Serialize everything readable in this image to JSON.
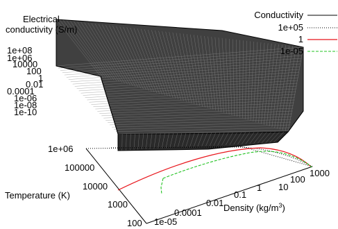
{
  "chart_data": {
    "type": "surface3d",
    "zlabel_line1": "Electrical",
    "zlabel_line2": "conductivity (S/m)",
    "ylabel": "Temperature (K)",
    "xlabel_main": "Density (kg/m",
    "xlabel_sup": "3",
    "xlabel_end": ")",
    "z_ticks": [
      "1e+08",
      "1e+06",
      "10000",
      "100",
      "1",
      "0.01",
      "0.0001",
      "1e-06",
      "1e-08",
      "1e-10"
    ],
    "y_ticks": [
      "1e+06",
      "100000",
      "10000",
      "1000",
      "100"
    ],
    "x_ticks": [
      "1e-05",
      "0.0001",
      "0.01",
      "0.1",
      "1",
      "10",
      "100",
      "1000"
    ],
    "zlim": [
      1e-10,
      100000000.0
    ],
    "ylim": [
      100,
      1000000
    ],
    "xlim": [
      1e-05,
      1000
    ],
    "z_scale": "log",
    "y_scale": "log",
    "x_scale": "log",
    "legend_position": "top-right",
    "series": [
      {
        "name": "Conductivity",
        "style": "surface",
        "color": "#000000"
      },
      {
        "name": "1e+05",
        "style": "dotted contour",
        "color": "#000000"
      },
      {
        "name": "1",
        "style": "solid contour",
        "color": "#e8151b"
      },
      {
        "name": "1e-05",
        "style": "dashed contour",
        "color": "#22c322"
      }
    ]
  }
}
